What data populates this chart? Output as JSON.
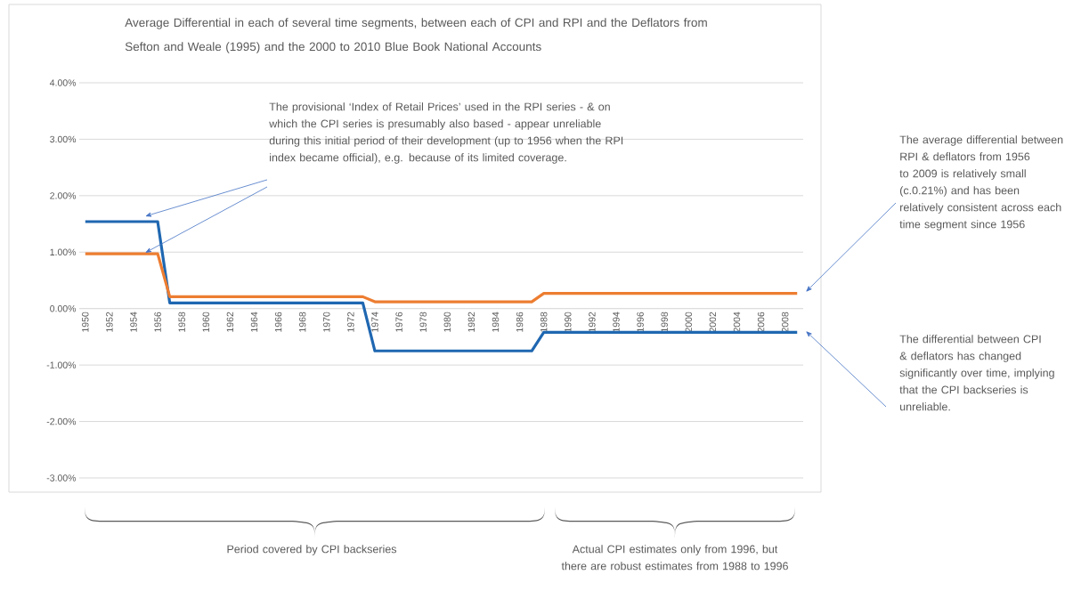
{
  "chart_data": {
    "type": "line",
    "title": "Average Differential in each of several time segments, between each of CPI and RPI and the Deflators from Sefton and Weale (1995) and the 2000 to 2010 Blue Book National Accounts",
    "categories": [
      "1950",
      null,
      "1952",
      null,
      "1954",
      null,
      "1956",
      null,
      "1958",
      null,
      "1960",
      null,
      "1962",
      null,
      "1964",
      null,
      "1966",
      null,
      "1968",
      null,
      "1970",
      null,
      "1972",
      null,
      "1974",
      null,
      "1976",
      null,
      "1978",
      null,
      "1980",
      null,
      "1982",
      null,
      "1984",
      null,
      "1986",
      null,
      "1988",
      null,
      "1990",
      null,
      "1992",
      null,
      "1994",
      null,
      "1996",
      null,
      "1998",
      null,
      "2000",
      null,
      "2002",
      null,
      "2004",
      null,
      "2006",
      null,
      "2008",
      null
    ],
    "series": [
      {
        "color": "#1f67b1",
        "values": [
          1.54,
          1.54,
          1.54,
          1.54,
          1.54,
          1.54,
          1.54,
          0.1,
          0.1,
          0.1,
          0.1,
          0.1,
          0.1,
          0.1,
          0.1,
          0.1,
          0.1,
          0.1,
          0.1,
          0.1,
          0.1,
          0.1,
          0.1,
          0.1,
          -0.75,
          -0.75,
          -0.75,
          -0.75,
          -0.75,
          -0.75,
          -0.75,
          -0.75,
          -0.75,
          -0.75,
          -0.75,
          -0.75,
          -0.75,
          -0.75,
          -0.42,
          -0.42,
          -0.42,
          -0.42,
          -0.42,
          -0.42,
          -0.42,
          -0.42,
          -0.42,
          -0.42,
          -0.42,
          -0.42,
          -0.42,
          -0.42,
          -0.42,
          -0.42,
          -0.42,
          -0.42,
          -0.42,
          -0.42,
          -0.42,
          -0.42
        ]
      },
      {
        "color": "#ed7d31",
        "values": [
          0.97,
          0.97,
          0.97,
          0.97,
          0.97,
          0.97,
          0.97,
          0.21,
          0.21,
          0.21,
          0.21,
          0.21,
          0.21,
          0.21,
          0.21,
          0.21,
          0.21,
          0.21,
          0.21,
          0.21,
          0.21,
          0.21,
          0.21,
          0.21,
          0.12,
          0.12,
          0.12,
          0.12,
          0.12,
          0.12,
          0.12,
          0.12,
          0.12,
          0.12,
          0.12,
          0.12,
          0.12,
          0.12,
          0.27,
          0.27,
          0.27,
          0.27,
          0.27,
          0.27,
          0.27,
          0.27,
          0.27,
          0.27,
          0.27,
          0.27,
          0.27,
          0.27,
          0.27,
          0.27,
          0.27,
          0.27,
          0.27,
          0.27,
          0.27,
          0.27
        ]
      }
    ],
    "ylim": [
      -3,
      4
    ],
    "yticks": [
      {
        "value": -3,
        "label": "-3.00%"
      },
      {
        "value": -2,
        "label": "-2.00%"
      },
      {
        "value": -1,
        "label": "-1.00%"
      },
      {
        "value": 0,
        "label": "0.00%"
      },
      {
        "value": 1,
        "label": "1.00%"
      },
      {
        "value": 2,
        "label": "2.00%"
      },
      {
        "value": 3,
        "label": "3.00%"
      },
      {
        "value": 4,
        "label": "4.00%"
      }
    ],
    "grid": "y",
    "marker": "none",
    "line_style": "solid",
    "annotations": [
      "The provisional ‘Index of Retail Prices’ used in the RPI series - & on which the CPI series is presumably also based - appear unreliable during this initial period of their development (up to 1956 when the RPI index became official), e.g. because of its limited coverage.",
      "The average differential between RPI & deflators from 1956 to 2009 is relatively small (c.0.21%) and has been relatively consistent across each time segment since 1956",
      "The differential between CPI & deflators has changed significantly over time, implying that the CPI backseries is unreliable.",
      "Period covered by CPI backseries",
      "Actual CPI estimates only from 1996, but there are robust estimates from 1988 to 1996"
    ]
  }
}
